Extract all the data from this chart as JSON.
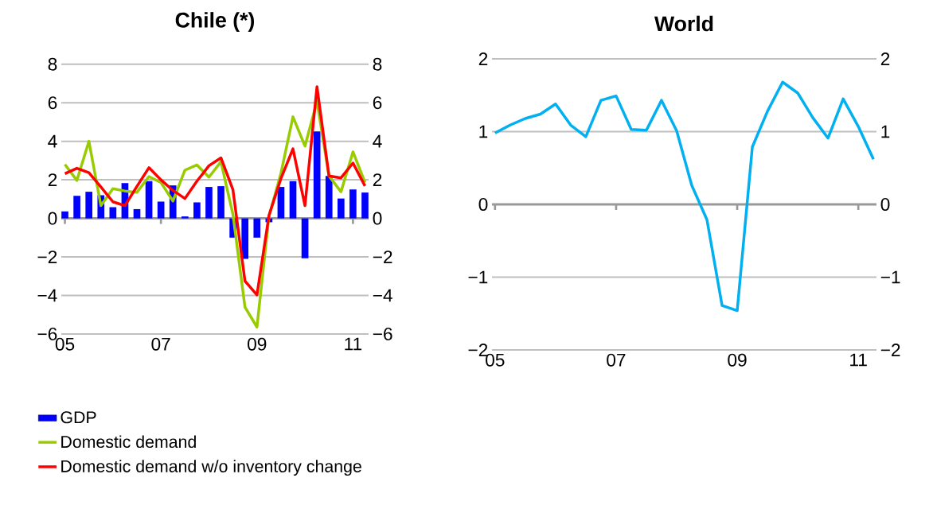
{
  "chart_data": [
    {
      "type": "bar",
      "title": "Chile (*)",
      "categories": [
        "05",
        null,
        null,
        null,
        null,
        null,
        null,
        null,
        "07",
        null,
        null,
        null,
        null,
        null,
        null,
        null,
        "09",
        null,
        null,
        null,
        null,
        null,
        null,
        null,
        "11",
        null
      ],
      "series": [
        {
          "name": "GDP",
          "type": "bar",
          "color": "#0000ff",
          "values": [
            0.36,
            1.17,
            1.38,
            1.2,
            0.58,
            1.83,
            0.48,
            1.93,
            0.87,
            1.71,
            0.1,
            0.83,
            1.63,
            1.67,
            -1.0,
            -2.1,
            -1.0,
            -0.2,
            1.63,
            1.93,
            -2.07,
            4.51,
            2.2,
            1.03,
            1.5,
            1.34
          ]
        },
        {
          "name": "Domestic demand",
          "type": "line",
          "color": "#99cc00",
          "values": [
            2.8,
            1.97,
            4.0,
            0.66,
            1.54,
            1.42,
            1.35,
            2.17,
            1.86,
            0.9,
            2.5,
            2.77,
            2.14,
            2.94,
            0.2,
            -4.6,
            -5.64,
            0.1,
            2.35,
            5.27,
            3.75,
            6.07,
            2.2,
            1.38,
            3.45,
            1.86
          ]
        },
        {
          "name": "Domestic demand w/o inventory change",
          "type": "line",
          "color": "#ff0000",
          "values": [
            2.32,
            2.6,
            2.37,
            1.63,
            0.86,
            0.66,
            1.66,
            2.63,
            2.0,
            1.45,
            1.03,
            1.93,
            2.73,
            3.14,
            1.48,
            -3.25,
            -3.97,
            0.15,
            2.07,
            3.61,
            0.66,
            6.83,
            2.2,
            2.1,
            2.87,
            1.68
          ]
        }
      ],
      "ylim": [
        -6,
        8
      ],
      "yticks": [
        {
          "value": -6,
          "label": "−6"
        },
        {
          "value": -4,
          "label": "−4"
        },
        {
          "value": -2,
          "label": "−2"
        },
        0,
        2,
        4,
        6,
        8
      ],
      "y2lim": [
        -6,
        8
      ],
      "y2ticks": [
        {
          "value": -6,
          "label": "−6"
        },
        {
          "value": -4,
          "label": "−4"
        },
        {
          "value": -2,
          "label": "−2"
        },
        0,
        2,
        4,
        6,
        8
      ],
      "grid": "y",
      "legend": "bottom"
    },
    {
      "type": "line",
      "title": "World",
      "categories": [
        "05",
        null,
        null,
        null,
        null,
        null,
        null,
        null,
        "07",
        null,
        null,
        null,
        null,
        null,
        null,
        null,
        "09",
        null,
        null,
        null,
        null,
        null,
        null,
        null,
        "11",
        null
      ],
      "series": [
        {
          "color": "#00b0f0",
          "values": [
            0.98,
            1.09,
            1.18,
            1.24,
            1.38,
            1.09,
            0.93,
            1.43,
            1.49,
            1.03,
            1.02,
            1.43,
            1.01,
            0.26,
            -0.21,
            -1.39,
            -1.46,
            0.79,
            1.28,
            1.68,
            1.53,
            1.19,
            0.91,
            1.45,
            1.07,
            0.62
          ]
        }
      ],
      "ylim": [
        -2,
        2
      ],
      "yticks": [
        {
          "value": -2,
          "label": "−2"
        },
        {
          "value": -1,
          "label": "−1"
        },
        0,
        1,
        2
      ],
      "y2lim": [
        -2,
        2
      ],
      "y2ticks": [
        {
          "value": -2,
          "label": "−2"
        },
        {
          "value": -1,
          "label": "−1"
        },
        0,
        1,
        2
      ],
      "grid": "y"
    }
  ]
}
